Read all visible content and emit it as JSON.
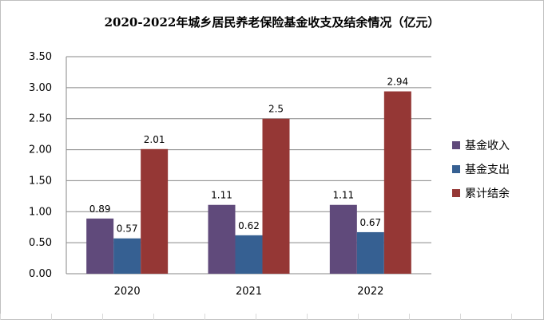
{
  "chart_data": {
    "type": "bar",
    "title": "2020-2022年城乡居民养老保险基金收支及结余情况（亿元）",
    "categories": [
      "2020",
      "2021",
      "2022"
    ],
    "series": [
      {
        "name": "基金收入",
        "values": [
          0.89,
          1.11,
          1.11
        ],
        "labels": [
          "0.89",
          "1.11",
          "1.11"
        ],
        "color": "#604A7B"
      },
      {
        "name": "基金支出",
        "values": [
          0.57,
          0.62,
          0.67
        ],
        "labels": [
          "0.57",
          "0.62",
          "0.67"
        ],
        "color": "#366092"
      },
      {
        "name": "累计结余",
        "values": [
          2.01,
          2.5,
          2.94
        ],
        "labels": [
          "2.01",
          "2.5",
          "2.94"
        ],
        "color": "#953735"
      }
    ],
    "yticks": [
      "0.00",
      "0.50",
      "1.00",
      "1.50",
      "2.00",
      "2.50",
      "3.00",
      "3.50"
    ],
    "ylim": [
      0,
      3.5
    ],
    "xlabel": "",
    "ylabel": "",
    "grid": true,
    "legend_position": "right"
  }
}
